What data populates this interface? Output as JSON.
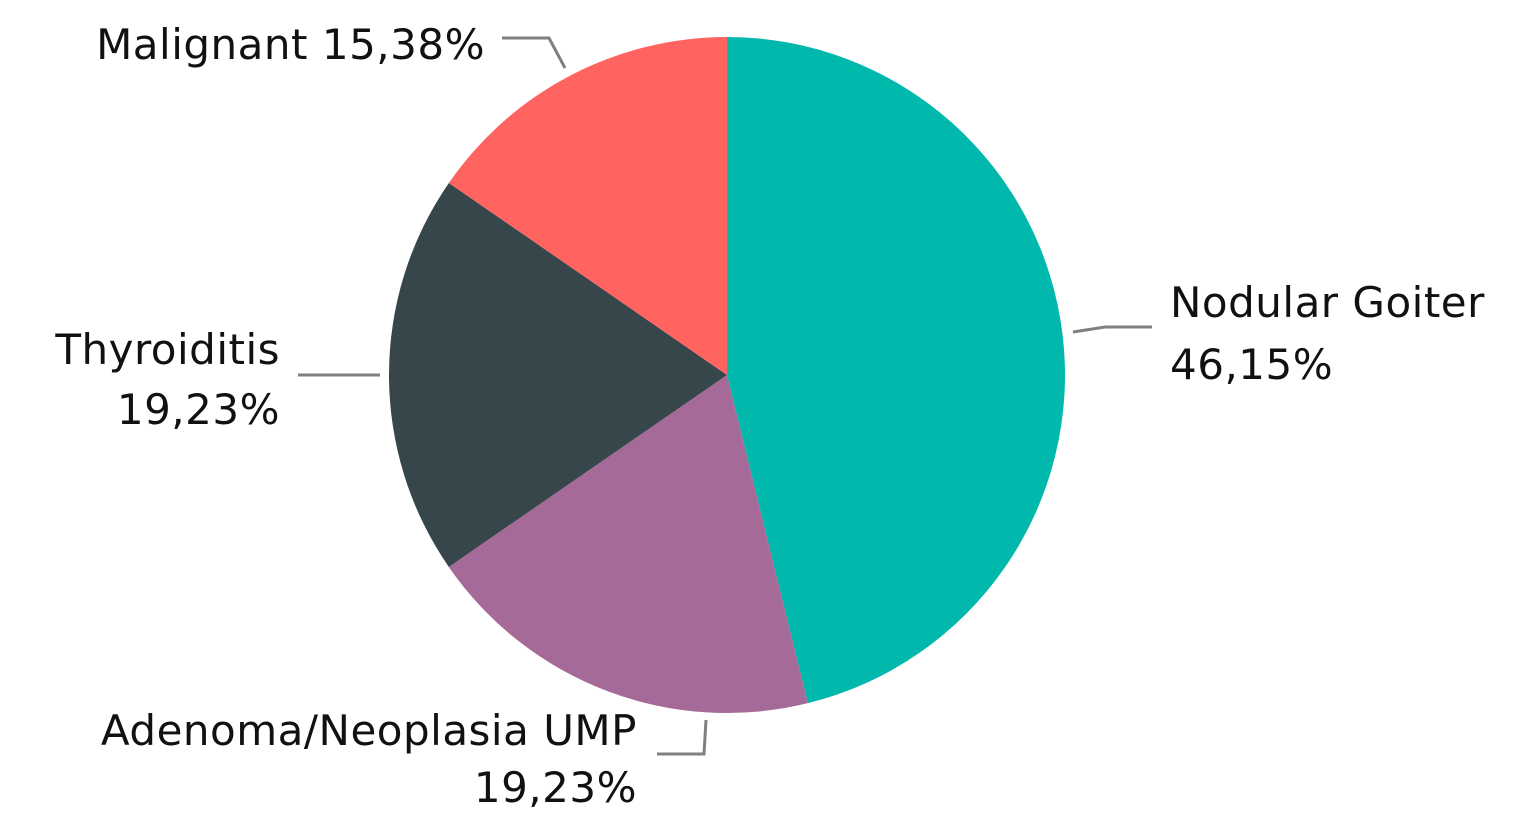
{
  "chart_data": {
    "type": "pie",
    "categories": [
      "Nodular Goiter",
      "Adenoma/Neoplasia UMP",
      "Thyroiditis",
      "Malignant"
    ],
    "values": [
      46.15,
      19.23,
      19.23,
      15.38
    ],
    "value_labels": [
      "46,15%",
      "19,23%",
      "19,23%",
      "15,38%"
    ],
    "colors": [
      "#00b8ab",
      "#a66a98",
      "#37464a",
      "#ff6461"
    ]
  }
}
